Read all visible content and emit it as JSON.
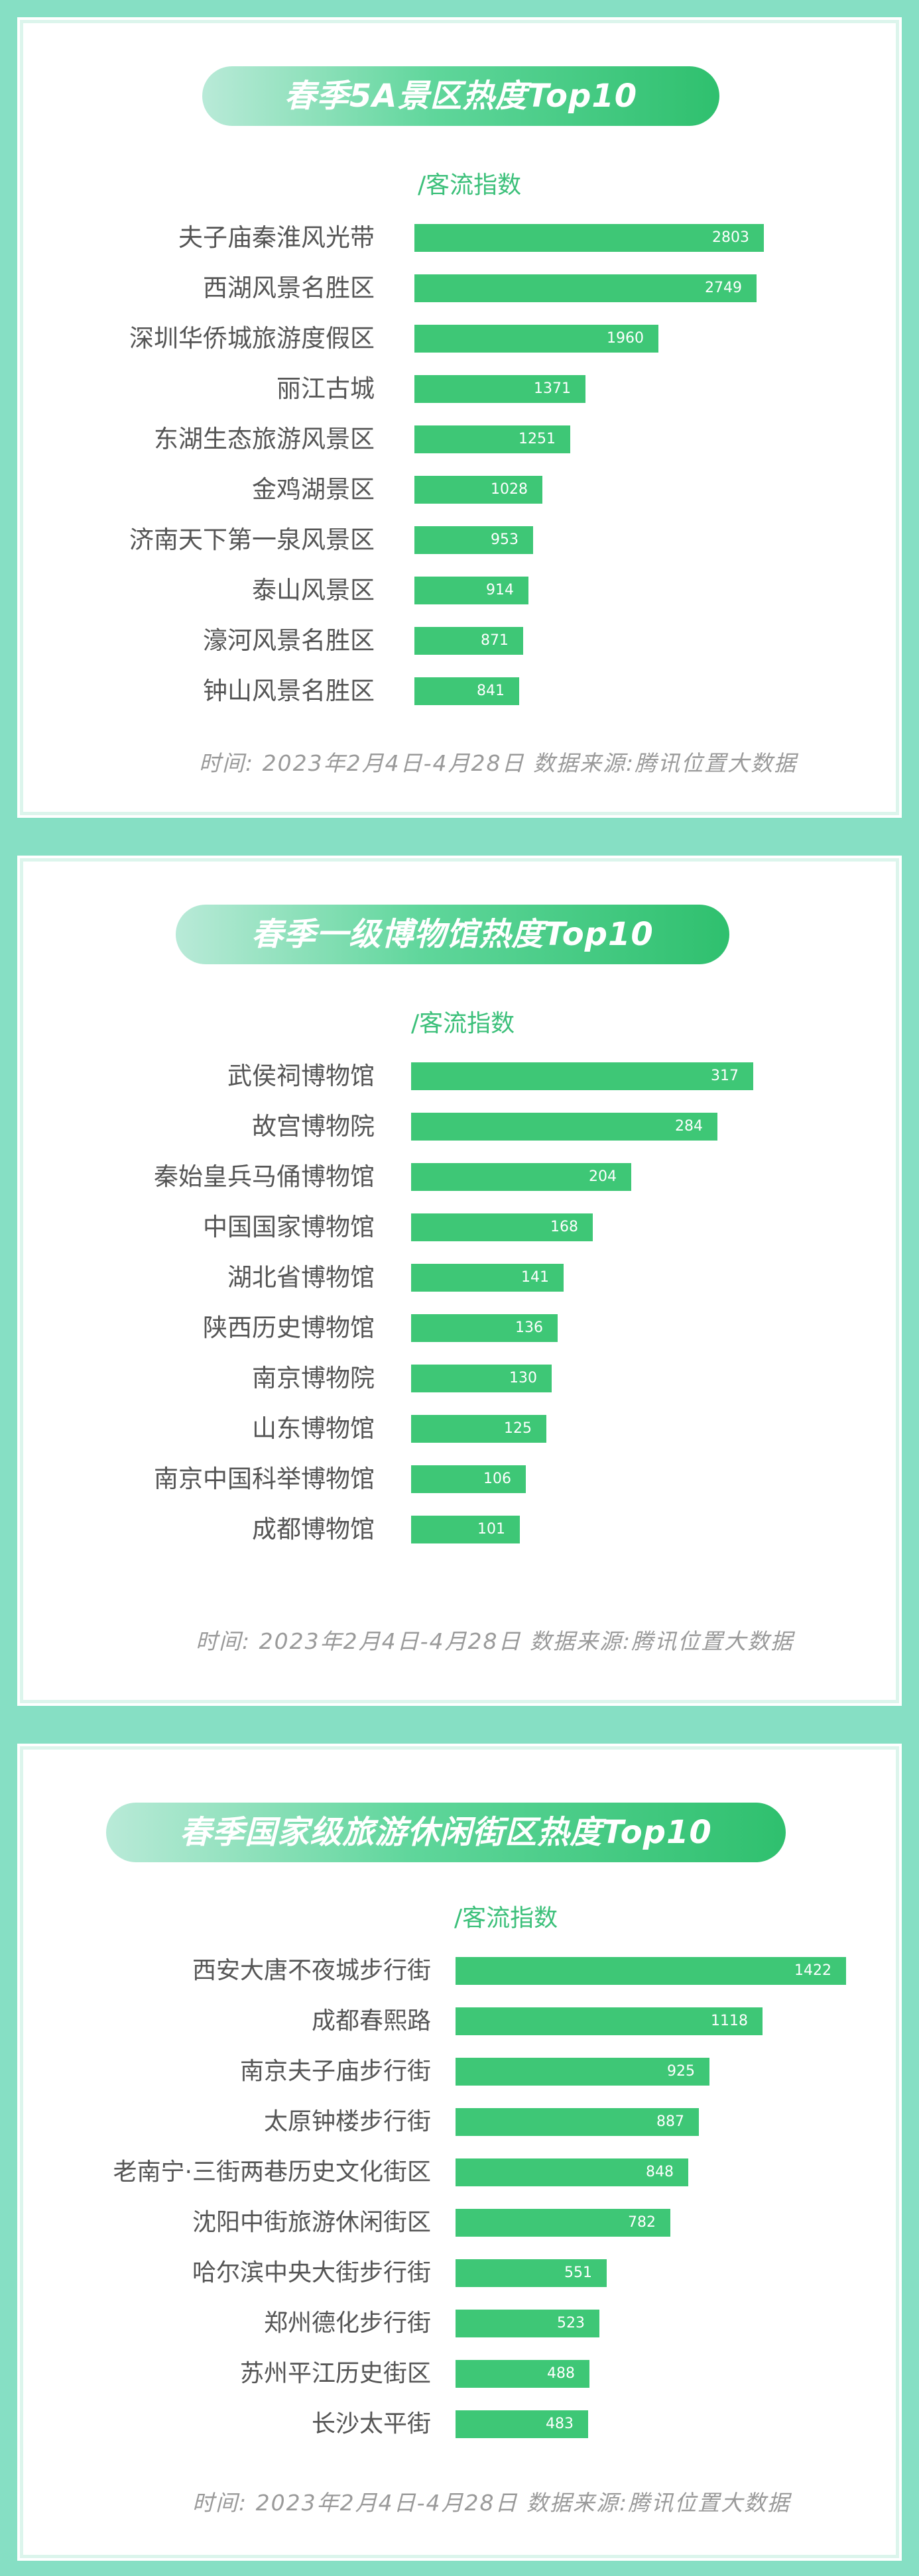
{
  "chart_data": [
    {
      "type": "bar",
      "title": "春季5A景区热度Top10",
      "ylabel": "/客流指数",
      "categories": [
        "夫子庙秦淮风光带",
        "西湖风景名胜区",
        "深圳华侨城旅游度假区",
        "丽江古城",
        "东湖生态旅游风景区",
        "金鸡湖景区",
        "济南天下第一泉风景区",
        "泰山风景区",
        "濠河风景名胜区",
        "钟山风景名胜区"
      ],
      "values": [
        2803,
        2749,
        1960,
        1371,
        1251,
        1028,
        953,
        914,
        871,
        841
      ],
      "value_labels": [
        "2803",
        "2749",
        "1960",
        "1371",
        "1251",
        "1028",
        "953",
        "914",
        "871",
        "841"
      ],
      "xlim": [
        0,
        3300
      ],
      "footnote": "时间: 2023年2月4日-4月28日  数据来源:腾讯位置大数据"
    },
    {
      "type": "bar",
      "title": "春季一级博物馆热度Top10",
      "ylabel": "/客流指数",
      "categories": [
        "武侯祠博物馆",
        "故宫博物院",
        "秦始皇兵马俑博物馆",
        "中国国家博物馆",
        "湖北省博物馆",
        "陕西历史博物馆",
        "南京博物院",
        "山东博物馆",
        "南京中国科举博物馆",
        "成都博物馆"
      ],
      "values": [
        317,
        284,
        204,
        168,
        141,
        136,
        130,
        125,
        106,
        101
      ],
      "value_labels": [
        "317",
        "284",
        "204",
        "168",
        "141",
        "136",
        "130",
        "125",
        "106",
        "101"
      ],
      "xlim": [
        0,
        390
      ],
      "footnote": "时间: 2023年2月4日-4月28日  数据来源:腾讯位置大数据"
    },
    {
      "type": "bar",
      "title": "春季国家级旅游休闲街区热度Top10",
      "ylabel": "/客流指数",
      "categories": [
        "西安大唐不夜城步行街",
        "成都春熙路",
        "南京夫子庙步行街",
        "太原钟楼步行街",
        "老南宁·三街两巷历史文化街区",
        "沈阳中街旅游休闲街区",
        "哈尔滨中央大街步行街",
        "郑州德化步行街",
        "苏州平江历史街区",
        "长沙太平街"
      ],
      "values": [
        1422,
        1118,
        925,
        887,
        848,
        782,
        551,
        523,
        488,
        483
      ],
      "value_labels": [
        "1422",
        "1118",
        "925",
        "887",
        "848",
        "782",
        "551",
        "523",
        "488",
        "483"
      ],
      "xlim": [
        0,
        1420
      ],
      "footnote": "时间: 2023年2月4日-4月28日  数据来源:腾讯位置大数据"
    }
  ],
  "colors": {
    "background": "#86dfc4",
    "bar": "#3ec776",
    "unit_text": "#3cc07a",
    "label_text": "#555555",
    "footnote_text": "#9a9a9a"
  }
}
